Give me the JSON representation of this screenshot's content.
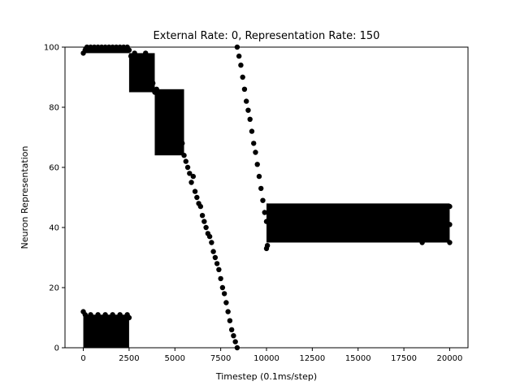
{
  "chart_data": {
    "type": "scatter",
    "title": "External Rate: 0, Representation Rate: 150",
    "xlabel": "Timestep (0.1ms/step)",
    "ylabel": "Neuron Representation",
    "xlim": [
      -1000,
      21000
    ],
    "ylim": [
      0,
      100
    ],
    "xticks": [
      0,
      2500,
      5000,
      7500,
      10000,
      12500,
      15000,
      17500,
      20000
    ],
    "yticks": [
      0,
      20,
      40,
      60,
      80,
      100
    ],
    "grid": false,
    "marker_color": "#000000",
    "series": [
      {
        "points": [
          [
            0,
            98
          ],
          [
            0,
            12
          ],
          [
            100,
            11
          ],
          [
            100,
            99
          ],
          [
            200,
            100
          ],
          [
            300,
            99
          ],
          [
            400,
            100
          ],
          [
            500,
            99
          ],
          [
            600,
            100
          ],
          [
            700,
            99
          ],
          [
            800,
            100
          ],
          [
            900,
            99
          ],
          [
            1000,
            100
          ],
          [
            1100,
            99
          ],
          [
            1200,
            100
          ],
          [
            1300,
            99
          ],
          [
            1400,
            100
          ],
          [
            1500,
            99
          ],
          [
            1600,
            100
          ],
          [
            1700,
            99
          ],
          [
            1800,
            100
          ],
          [
            1900,
            99
          ],
          [
            2000,
            100
          ],
          [
            2100,
            99
          ],
          [
            2200,
            100
          ],
          [
            2300,
            99
          ],
          [
            2400,
            100
          ],
          [
            2500,
            99
          ],
          [
            200,
            10
          ],
          [
            300,
            9
          ],
          [
            400,
            11
          ],
          [
            500,
            8
          ],
          [
            600,
            10
          ],
          [
            700,
            9
          ],
          [
            800,
            11
          ],
          [
            900,
            7
          ],
          [
            1000,
            10
          ],
          [
            1100,
            9
          ],
          [
            1200,
            11
          ],
          [
            1300,
            8
          ],
          [
            1400,
            10
          ],
          [
            1500,
            9
          ],
          [
            1600,
            11
          ],
          [
            1700,
            7
          ],
          [
            1800,
            10
          ],
          [
            1900,
            9
          ],
          [
            2000,
            11
          ],
          [
            2100,
            8
          ],
          [
            2200,
            10
          ],
          [
            2300,
            9
          ],
          [
            2400,
            11
          ],
          [
            2500,
            10
          ],
          [
            2600,
            97
          ],
          [
            2650,
            92
          ],
          [
            2700,
            88
          ],
          [
            2750,
            95
          ],
          [
            2800,
            98
          ],
          [
            2900,
            93
          ],
          [
            3000,
            90
          ],
          [
            3100,
            97
          ],
          [
            3200,
            94
          ],
          [
            3300,
            91
          ],
          [
            3400,
            98
          ],
          [
            3500,
            89
          ],
          [
            3600,
            93
          ],
          [
            3700,
            96
          ],
          [
            3800,
            88
          ],
          [
            3900,
            85
          ],
          [
            4000,
            86
          ],
          [
            4100,
            82
          ],
          [
            4200,
            79
          ],
          [
            4300,
            85
          ],
          [
            4400,
            76
          ],
          [
            4500,
            80
          ],
          [
            4600,
            84
          ],
          [
            4700,
            75
          ],
          [
            4800,
            77
          ],
          [
            4900,
            74
          ],
          [
            5000,
            73
          ],
          [
            5100,
            70
          ],
          [
            5200,
            72
          ],
          [
            5300,
            66
          ],
          [
            5400,
            68
          ],
          [
            5500,
            64
          ],
          [
            5600,
            62
          ],
          [
            5700,
            60
          ],
          [
            5800,
            58
          ],
          [
            5900,
            55
          ],
          [
            6000,
            57
          ],
          [
            6100,
            52
          ],
          [
            6200,
            50
          ],
          [
            6300,
            48
          ],
          [
            6400,
            47
          ],
          [
            6500,
            44
          ],
          [
            6600,
            42
          ],
          [
            6700,
            40
          ],
          [
            6800,
            38
          ],
          [
            6900,
            37
          ],
          [
            7000,
            35
          ],
          [
            7100,
            32
          ],
          [
            7200,
            30
          ],
          [
            7300,
            28
          ],
          [
            7400,
            26
          ],
          [
            7500,
            23
          ],
          [
            7600,
            20
          ],
          [
            7700,
            18
          ],
          [
            7800,
            15
          ],
          [
            7900,
            12
          ],
          [
            8000,
            9
          ],
          [
            8100,
            6
          ],
          [
            8200,
            4
          ],
          [
            8300,
            2
          ],
          [
            8400,
            0
          ],
          [
            8400,
            100
          ],
          [
            8500,
            97
          ],
          [
            8600,
            94
          ],
          [
            8700,
            90
          ],
          [
            8800,
            86
          ],
          [
            8900,
            82
          ],
          [
            9000,
            79
          ],
          [
            9100,
            76
          ],
          [
            9200,
            72
          ],
          [
            9300,
            68
          ],
          [
            9400,
            65
          ],
          [
            9500,
            61
          ],
          [
            9600,
            57
          ],
          [
            9700,
            53
          ],
          [
            9800,
            49
          ],
          [
            9900,
            45
          ],
          [
            10000,
            42
          ],
          [
            10050,
            34
          ],
          [
            10000,
            33
          ],
          [
            10200,
            47
          ],
          [
            10500,
            46
          ],
          [
            10800,
            44
          ],
          [
            11000,
            42
          ],
          [
            11200,
            40
          ],
          [
            11500,
            38
          ],
          [
            11800,
            45
          ],
          [
            12000,
            36
          ],
          [
            12500,
            41
          ],
          [
            13000,
            47
          ],
          [
            13500,
            37
          ],
          [
            14000,
            43
          ],
          [
            14500,
            39
          ],
          [
            15000,
            46
          ],
          [
            15500,
            36
          ],
          [
            16000,
            44
          ],
          [
            16500,
            40
          ],
          [
            17000,
            47
          ],
          [
            17500,
            37
          ],
          [
            18000,
            43
          ],
          [
            18500,
            35
          ],
          [
            19000,
            46
          ],
          [
            19500,
            39
          ],
          [
            20000,
            41
          ],
          [
            20000,
            47
          ],
          [
            20000,
            35
          ]
        ]
      }
    ],
    "bands": [
      {
        "x": [
          0,
          2500
        ],
        "y": [
          98,
          100
        ]
      },
      {
        "x": [
          0,
          2500
        ],
        "y": [
          0,
          11
        ]
      },
      {
        "x": [
          2500,
          3900
        ],
        "y": [
          85,
          98
        ]
      },
      {
        "x": [
          3900,
          5500
        ],
        "y": [
          64,
          86
        ]
      },
      {
        "x": [
          10000,
          20000
        ],
        "y": [
          35,
          48
        ]
      }
    ]
  }
}
